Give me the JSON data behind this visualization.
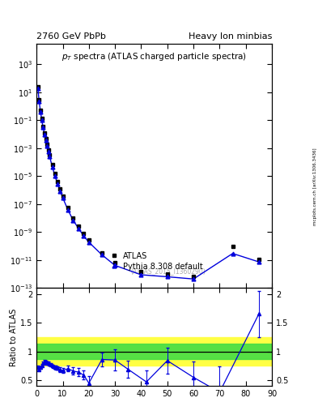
{
  "title_left": "2760 GeV PbPb",
  "title_right": "Heavy Ion minbias",
  "main_title": "$p_T$ spectra (ATLAS charged particle spectra)",
  "watermark": "(ATLAS_2015_I1360290)",
  "side_label": "mcplots.cern.ch [arXiv:1306.3436]",
  "ylabel_ratio": "Ratio to ATLAS",
  "atlas_pt": [
    0.5,
    1.0,
    1.5,
    2.0,
    2.5,
    3.0,
    3.5,
    4.0,
    4.5,
    5.0,
    6.0,
    7.0,
    8.0,
    9.0,
    10.0,
    12.0,
    14.0,
    16.0,
    18.0,
    20.0,
    25.0,
    30.0,
    40.0,
    50.0,
    60.0,
    75.0,
    85.0
  ],
  "atlas_val": [
    25.0,
    2.8,
    0.55,
    0.13,
    0.038,
    0.013,
    0.0048,
    0.0019,
    0.00078,
    0.00033,
    6.5e-05,
    1.5e-05,
    4e-06,
    1.2e-06,
    4e-07,
    5.5e-08,
    1e-08,
    2.7e-09,
    8e-10,
    2.8e-10,
    3.5e-11,
    6.5e-12,
    1.5e-12,
    1e-12,
    7e-13,
    1e-10,
    1.2e-11
  ],
  "pythia_pt": [
    0.5,
    1.0,
    1.5,
    2.0,
    2.5,
    3.0,
    3.5,
    4.0,
    4.5,
    5.0,
    6.0,
    7.0,
    8.0,
    9.0,
    10.0,
    12.0,
    14.0,
    16.0,
    18.0,
    20.0,
    25.0,
    30.0,
    40.0,
    50.0,
    60.0,
    75.0,
    85.0
  ],
  "pythia_val": [
    19.0,
    2.1,
    0.4,
    0.1,
    0.03,
    0.01,
    0.0038,
    0.0015,
    0.0006,
    0.00025,
    4.8e-05,
    1.1e-05,
    2.9e-06,
    8.8e-07,
    2.9e-07,
    3.9e-08,
    7e-09,
    1.9e-09,
    5.5e-10,
    1.9e-10,
    2.4e-11,
    4.2e-12,
    9e-13,
    6.5e-13,
    4.5e-13,
    3e-11,
    7.5e-12
  ],
  "ratio_pt": [
    0.5,
    1.0,
    1.5,
    2.0,
    2.5,
    3.0,
    3.5,
    4.0,
    4.5,
    5.0,
    5.5,
    6.0,
    6.5,
    7.0,
    7.5,
    8.0,
    9.0,
    10.0,
    12.0,
    14.0,
    16.0,
    18.0,
    20.0,
    25.0,
    30.0,
    35.0,
    42.0,
    50.0,
    60.0,
    70.0,
    85.0
  ],
  "ratio_val": [
    0.73,
    0.69,
    0.72,
    0.76,
    0.8,
    0.83,
    0.82,
    0.8,
    0.8,
    0.78,
    0.77,
    0.75,
    0.74,
    0.73,
    0.72,
    0.71,
    0.68,
    0.67,
    0.7,
    0.66,
    0.64,
    0.59,
    0.45,
    0.86,
    0.85,
    0.69,
    0.47,
    0.84,
    0.55,
    0.29,
    1.65
  ],
  "ratio_err": [
    0.02,
    0.02,
    0.02,
    0.02,
    0.02,
    0.02,
    0.02,
    0.02,
    0.02,
    0.02,
    0.02,
    0.02,
    0.02,
    0.03,
    0.03,
    0.03,
    0.04,
    0.04,
    0.05,
    0.06,
    0.07,
    0.08,
    0.12,
    0.12,
    0.18,
    0.15,
    0.2,
    0.22,
    0.28,
    0.45,
    0.4
  ],
  "band_yellow_low": 0.75,
  "band_yellow_high": 1.25,
  "band_green_low": 0.87,
  "band_green_high": 1.13,
  "xlim": [
    0,
    90
  ],
  "ylim_main": [
    1e-13,
    30000.0
  ],
  "ratio_ylim": [
    0.4,
    2.1
  ],
  "ratio_yticks": [
    0.5,
    1.0,
    1.5,
    2.0
  ],
  "color_blue": "#0000dd",
  "color_yellow": "#ffff44",
  "color_green": "#44dd44",
  "legend_atlas": "ATLAS",
  "legend_pythia": "Pythia 8.308 default"
}
